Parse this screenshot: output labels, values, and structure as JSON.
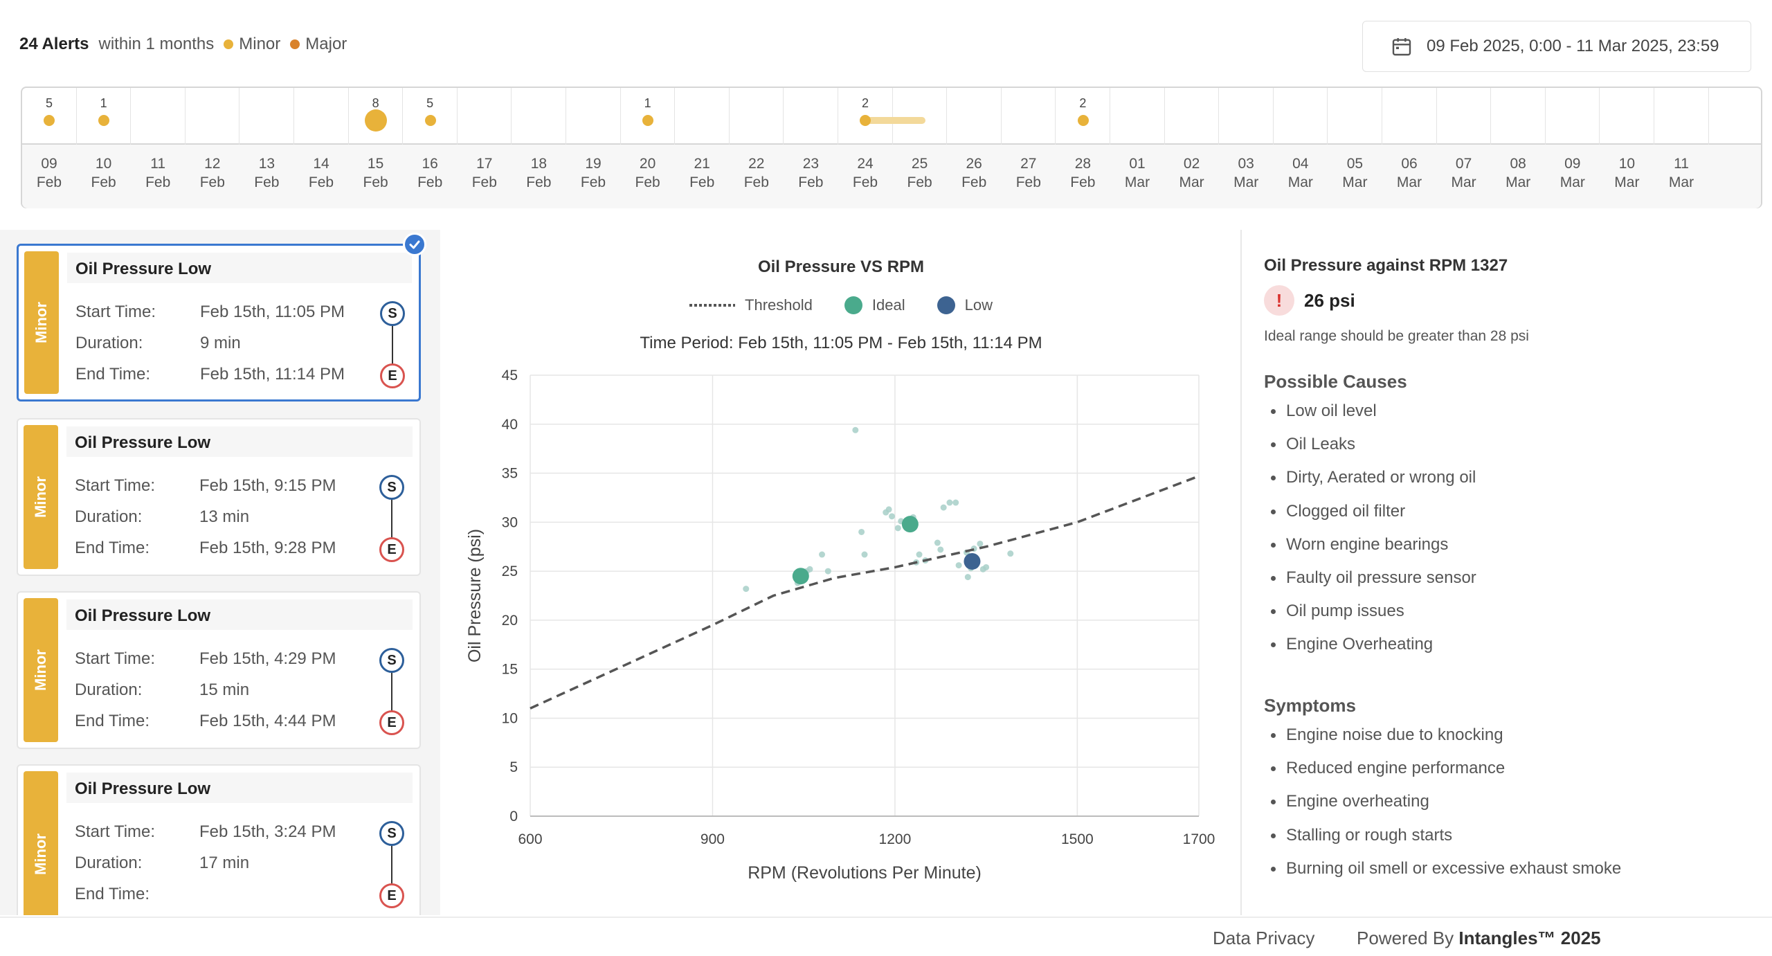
{
  "header": {
    "alert_count": "24 Alerts",
    "window": "within 1 months",
    "legend_minor": "Minor",
    "legend_major": "Major",
    "date_range": "09 Feb 2025, 0:00 - 11 Mar 2025, 23:59"
  },
  "colors": {
    "minor": "#e8b23a",
    "major": "#d9822b",
    "ideal": "#4aaa8c",
    "low": "#3d6391",
    "selected": "#3a78d0"
  },
  "timeline": {
    "days": [
      {
        "d": "09",
        "m": "Feb",
        "count": "5",
        "size": "small"
      },
      {
        "d": "10",
        "m": "Feb",
        "count": "1",
        "size": "small"
      },
      {
        "d": "11",
        "m": "Feb",
        "count": "",
        "size": ""
      },
      {
        "d": "12",
        "m": "Feb",
        "count": "",
        "size": ""
      },
      {
        "d": "13",
        "m": "Feb",
        "count": "",
        "size": ""
      },
      {
        "d": "14",
        "m": "Feb",
        "count": "",
        "size": ""
      },
      {
        "d": "15",
        "m": "Feb",
        "count": "8",
        "size": "large"
      },
      {
        "d": "16",
        "m": "Feb",
        "count": "5",
        "size": "small"
      },
      {
        "d": "17",
        "m": "Feb",
        "count": "",
        "size": ""
      },
      {
        "d": "18",
        "m": "Feb",
        "count": "",
        "size": ""
      },
      {
        "d": "19",
        "m": "Feb",
        "count": "",
        "size": ""
      },
      {
        "d": "20",
        "m": "Feb",
        "count": "1",
        "size": "small"
      },
      {
        "d": "21",
        "m": "Feb",
        "count": "",
        "size": ""
      },
      {
        "d": "22",
        "m": "Feb",
        "count": "",
        "size": ""
      },
      {
        "d": "23",
        "m": "Feb",
        "count": "",
        "size": ""
      },
      {
        "d": "24",
        "m": "Feb",
        "count": "2",
        "size": "bar"
      },
      {
        "d": "25",
        "m": "Feb",
        "count": "",
        "size": ""
      },
      {
        "d": "26",
        "m": "Feb",
        "count": "",
        "size": ""
      },
      {
        "d": "27",
        "m": "Feb",
        "count": "",
        "size": ""
      },
      {
        "d": "28",
        "m": "Feb",
        "count": "2",
        "size": "small"
      },
      {
        "d": "01",
        "m": "Mar",
        "count": "",
        "size": ""
      },
      {
        "d": "02",
        "m": "Mar",
        "count": "",
        "size": ""
      },
      {
        "d": "03",
        "m": "Mar",
        "count": "",
        "size": ""
      },
      {
        "d": "04",
        "m": "Mar",
        "count": "",
        "size": ""
      },
      {
        "d": "05",
        "m": "Mar",
        "count": "",
        "size": ""
      },
      {
        "d": "06",
        "m": "Mar",
        "count": "",
        "size": ""
      },
      {
        "d": "07",
        "m": "Mar",
        "count": "",
        "size": ""
      },
      {
        "d": "08",
        "m": "Mar",
        "count": "",
        "size": ""
      },
      {
        "d": "09",
        "m": "Mar",
        "count": "",
        "size": ""
      },
      {
        "d": "10",
        "m": "Mar",
        "count": "",
        "size": ""
      },
      {
        "d": "11",
        "m": "Mar",
        "count": "",
        "size": ""
      }
    ]
  },
  "alerts": [
    {
      "severity": "Minor",
      "title": "Oil Pressure Low",
      "start_label": "Start Time:",
      "start": "Feb 15th, 11:05 PM",
      "duration_label": "Duration:",
      "duration": "9 min",
      "end_label": "End Time:",
      "end": "Feb 15th, 11:14 PM",
      "s": "S",
      "e": "E"
    },
    {
      "severity": "Minor",
      "title": "Oil Pressure Low",
      "start_label": "Start Time:",
      "start": "Feb 15th, 9:15 PM",
      "duration_label": "Duration:",
      "duration": "13 min",
      "end_label": "End Time:",
      "end": "Feb 15th, 9:28 PM",
      "s": "S",
      "e": "E"
    },
    {
      "severity": "Minor",
      "title": "Oil Pressure Low",
      "start_label": "Start Time:",
      "start": "Feb 15th, 4:29 PM",
      "duration_label": "Duration:",
      "duration": "15 min",
      "end_label": "End Time:",
      "end": "Feb 15th, 4:44 PM",
      "s": "S",
      "e": "E"
    },
    {
      "severity": "Minor",
      "title": "Oil Pressure Low",
      "start_label": "Start Time:",
      "start": "Feb 15th, 3:24 PM",
      "duration_label": "Duration:",
      "duration": "17 min",
      "end_label": "End Time:",
      "end": "",
      "s": "S",
      "e": "E"
    }
  ],
  "chart_data": {
    "type": "scatter",
    "title": "Oil Pressure VS RPM",
    "period": "Time Period: Feb 15th, 11:05 PM - Feb 15th, 11:14 PM",
    "xlabel": "RPM (Revolutions Per Minute)",
    "ylabel": "Oil Pressure (psi)",
    "xlim": [
      600,
      1700
    ],
    "ylim": [
      0,
      45
    ],
    "xticks": [
      "600",
      "900",
      "1200",
      "1500",
      "1700"
    ],
    "yticks": [
      "0",
      "5",
      "10",
      "15",
      "20",
      "25",
      "30",
      "35",
      "40",
      "45"
    ],
    "legend": [
      "Threshold",
      "Ideal",
      "Low"
    ],
    "threshold": [
      [
        600,
        11
      ],
      [
        900,
        19.5
      ],
      [
        1000,
        22.5
      ],
      [
        1100,
        24.3
      ],
      [
        1200,
        25.4
      ],
      [
        1350,
        27.5
      ],
      [
        1500,
        30
      ],
      [
        1700,
        34.7
      ]
    ],
    "ideal": [
      [
        1045,
        24.5
      ],
      [
        1225,
        29.8
      ]
    ],
    "low": [
      [
        1327,
        26
      ]
    ],
    "background_points": [
      [
        955,
        23.2
      ],
      [
        1040,
        23.8
      ],
      [
        1055,
        25
      ],
      [
        1060,
        25.2
      ],
      [
        1080,
        26.7
      ],
      [
        1090,
        25
      ],
      [
        1135,
        39.4
      ],
      [
        1145,
        29
      ],
      [
        1150,
        26.7
      ],
      [
        1185,
        31
      ],
      [
        1195,
        30.6
      ],
      [
        1190,
        31.3
      ],
      [
        1205,
        29.4
      ],
      [
        1210,
        30.1
      ],
      [
        1230,
        30.5
      ],
      [
        1240,
        26.7
      ],
      [
        1250,
        26.1
      ],
      [
        1235,
        25.9
      ],
      [
        1270,
        27.9
      ],
      [
        1275,
        27.2
      ],
      [
        1280,
        31.5
      ],
      [
        1290,
        32
      ],
      [
        1300,
        32
      ],
      [
        1305,
        25.6
      ],
      [
        1318,
        26.9
      ],
      [
        1320,
        24.4
      ],
      [
        1325,
        25.3
      ],
      [
        1330,
        27.3
      ],
      [
        1340,
        27.8
      ],
      [
        1345,
        25.2
      ],
      [
        1350,
        25.4
      ],
      [
        1390,
        26.8
      ]
    ]
  },
  "details": {
    "title": "Oil Pressure against RPM 1327",
    "value": "26 psi",
    "note": "Ideal range should be greater than 28 psi",
    "causes_title": "Possible Causes",
    "causes": [
      "Low oil level",
      "Oil Leaks",
      "Dirty, Aerated or wrong oil",
      "Clogged oil filter",
      "Worn engine bearings",
      "Faulty oil pressure sensor",
      "Oil pump issues",
      "Engine Overheating"
    ],
    "symptoms_title": "Symptoms",
    "symptoms": [
      "Engine noise due to knocking",
      "Reduced engine performance",
      "Engine overheating",
      "Stalling or rough starts",
      "Burning oil smell or excessive exhaust smoke"
    ]
  },
  "footer": {
    "privacy": "Data Privacy",
    "powered": "Powered By",
    "brand": "Intangles™ 2025"
  }
}
